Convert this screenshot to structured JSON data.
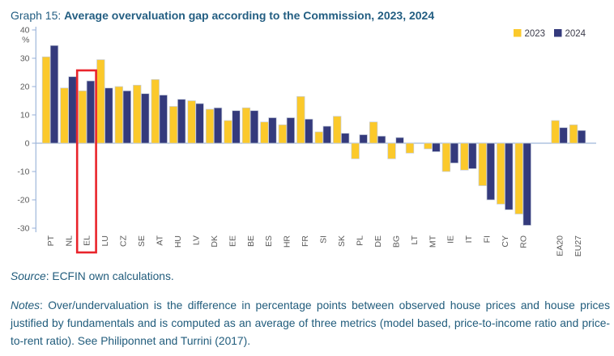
{
  "page": {
    "title_prefix": "Graph 15: ",
    "title": "Average overvaluation gap according to the Commission, 2023, 2024",
    "source_label": "Source",
    "source_text": ": ECFIN own calculations.",
    "notes_label": "Notes",
    "notes_text": ": Over/undervaluation is the difference in percentage points between observed house prices and house prices justified by fundamentals and is computed as an average of three metrics (model based, price-to-income ratio and price-to-rent ratio). See Philiponnet and Turrini (2017)."
  },
  "chart_data": {
    "type": "bar",
    "title": "Average overvaluation gap according to the Commission, 2023, 2024",
    "unit_label": "%",
    "categories": [
      "PT",
      "NL",
      "EL",
      "LU",
      "CZ",
      "SE",
      "AT",
      "HU",
      "LV",
      "DK",
      "EE",
      "BE",
      "ES",
      "HR",
      "FR",
      "SI",
      "SK",
      "PL",
      "DE",
      "BG",
      "LT",
      "MT",
      "IE",
      "IT",
      "FI",
      "CY",
      "RO",
      "EA20",
      "EU27"
    ],
    "series": [
      {
        "name": "2023",
        "color": "#FBC92B",
        "values": [
          30.5,
          19.5,
          18.5,
          29.5,
          20,
          20.5,
          22.5,
          13,
          15,
          12,
          8,
          12.5,
          7.5,
          6.5,
          16.5,
          4,
          9.5,
          -5.5,
          7.5,
          -5.5,
          -3.5,
          -2,
          -10,
          -9.5,
          -15,
          -21.5,
          -25,
          8,
          6.5
        ]
      },
      {
        "name": "2024",
        "color": "#343A7C",
        "values": [
          34.5,
          23.5,
          22,
          19.5,
          18.5,
          17.5,
          17,
          15.5,
          14,
          12.5,
          11.5,
          11.5,
          9,
          9,
          8.5,
          6,
          3.5,
          3,
          2.5,
          2,
          0,
          -3,
          -7,
          -9,
          -20,
          -23.5,
          -29,
          5.5,
          4.5
        ]
      }
    ],
    "ylim": [
      -30,
      40
    ],
    "yticks": [
      40,
      30,
      20,
      10,
      0,
      -10,
      -20,
      -30
    ],
    "grid": false,
    "legend_position": "top-right",
    "separator_before_category": "EA20",
    "highlight": {
      "category": "EL",
      "color": "#E9242B"
    },
    "axis_color": "#9FB6DA",
    "tick_label_color": "#5A5A5A",
    "legend_text_color": "#3B3B4A",
    "bar_outline_color": "#C6CDDB"
  }
}
